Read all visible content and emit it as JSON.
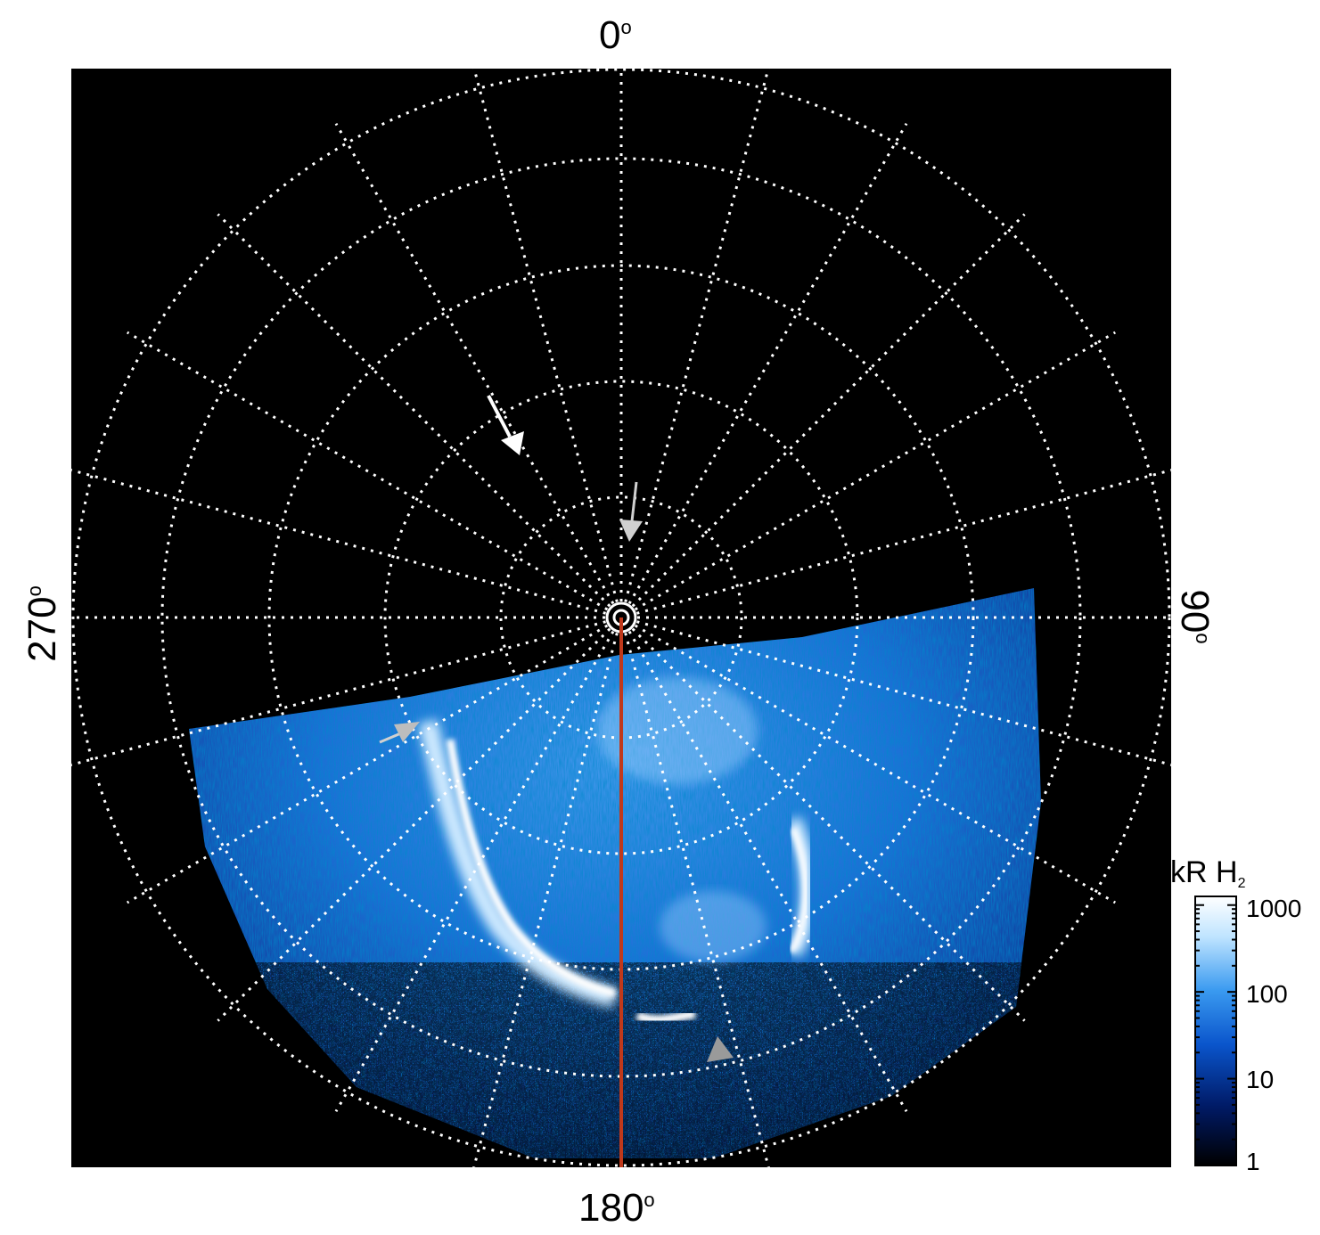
{
  "axis_labels": {
    "top": "0",
    "bottom": "180",
    "left": "270",
    "right": "90",
    "degree_symbol": "o"
  },
  "colorbar": {
    "title": "kR H",
    "title_subscript": "2",
    "scale": "log",
    "ticks": [
      "1000",
      "100",
      "10",
      "1"
    ],
    "colors": [
      "#000000",
      "#001a66",
      "#0a55cc",
      "#3a9af0",
      "#bfe4ff",
      "#ffffff"
    ]
  },
  "markers": {
    "white_arrow": "#ffffff",
    "gray_arrow": "#bdbdbd",
    "meridian_line": "#c0391b"
  }
}
